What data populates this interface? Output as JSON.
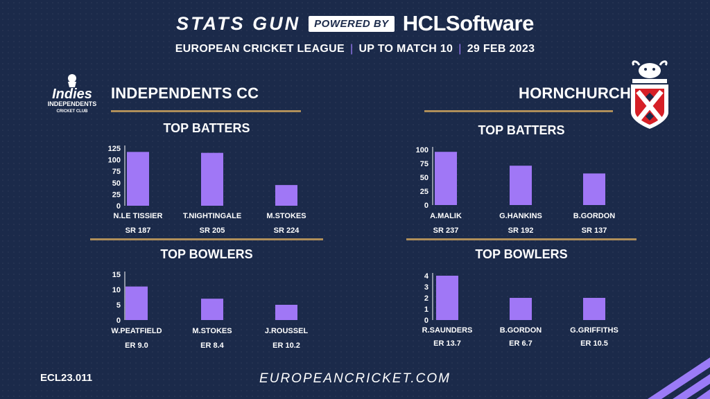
{
  "header": {
    "brand": "STATS GUN",
    "powered_by": "POWERED BY",
    "sponsor": "HCLSoftware",
    "league": "EUROPEAN CRICKET LEAGUE",
    "match_info": "UP TO MATCH  10",
    "date": "29 FEB 2023"
  },
  "teams": [
    {
      "name": "INDEPENDENTS CC",
      "logo_text": {
        "line1": "Indies",
        "line2": "INDEPENDENTS",
        "line3": "CRICKET CLUB"
      },
      "batters_title": "TOP BATTERS",
      "bowlers_title": "TOP BOWLERS"
    },
    {
      "name": "HORNCHURCH",
      "batters_title": "TOP BATTERS",
      "bowlers_title": "TOP BOWLERS"
    }
  ],
  "footer": {
    "code": "ECL23.011",
    "url": "EUROPEANCRICKET.COM"
  },
  "colors": {
    "bar": "#a077f6",
    "background": "#1b2a4a",
    "gold": "#b08f5a",
    "accent": "#9b7bf7"
  },
  "chart_data": [
    {
      "type": "bar",
      "title": "TOP BATTERS",
      "team": "INDEPENDENTS CC",
      "categories": [
        "N.LE TISSIER",
        "T.NIGHTINGALE",
        "M.STOKES"
      ],
      "values": [
        117,
        115,
        45
      ],
      "sublabels": [
        "SR 187",
        "SR 205",
        "SR 224"
      ],
      "ylim": [
        0,
        125
      ],
      "yticks": [
        0,
        25,
        50,
        75,
        100,
        125
      ],
      "grid": false
    },
    {
      "type": "bar",
      "title": "TOP BOWLERS",
      "team": "INDEPENDENTS CC",
      "categories": [
        "W.PEATFIELD",
        "M.STOKES",
        "J.ROUSSEL"
      ],
      "values": [
        11,
        7,
        5
      ],
      "sublabels": [
        "ER  9.0",
        "ER 8.4",
        "ER 10.2"
      ],
      "ylim": [
        0,
        15
      ],
      "yticks": [
        0,
        5,
        10,
        15
      ],
      "grid": false
    },
    {
      "type": "bar",
      "title": "TOP BATTERS",
      "team": "HORNCHURCH",
      "categories": [
        "A.MALIK",
        "G.HANKINS",
        "B.GORDON"
      ],
      "values": [
        96,
        71,
        57
      ],
      "sublabels": [
        "SR 237",
        "SR 192",
        "SR 137"
      ],
      "ylim": [
        0,
        100
      ],
      "yticks": [
        0,
        25,
        50,
        75,
        100
      ],
      "grid": false
    },
    {
      "type": "bar",
      "title": "TOP BOWLERS",
      "team": "HORNCHURCH",
      "categories": [
        "R.SAUNDERS",
        "B.GORDON",
        "G.GRIFFITHS"
      ],
      "values": [
        4,
        2,
        2
      ],
      "sublabels": [
        "ER 13.7",
        "ER 6.7",
        "ER 10.5"
      ],
      "ylim": [
        0,
        4
      ],
      "yticks": [
        0,
        1,
        2,
        3,
        4
      ],
      "grid": false
    }
  ]
}
